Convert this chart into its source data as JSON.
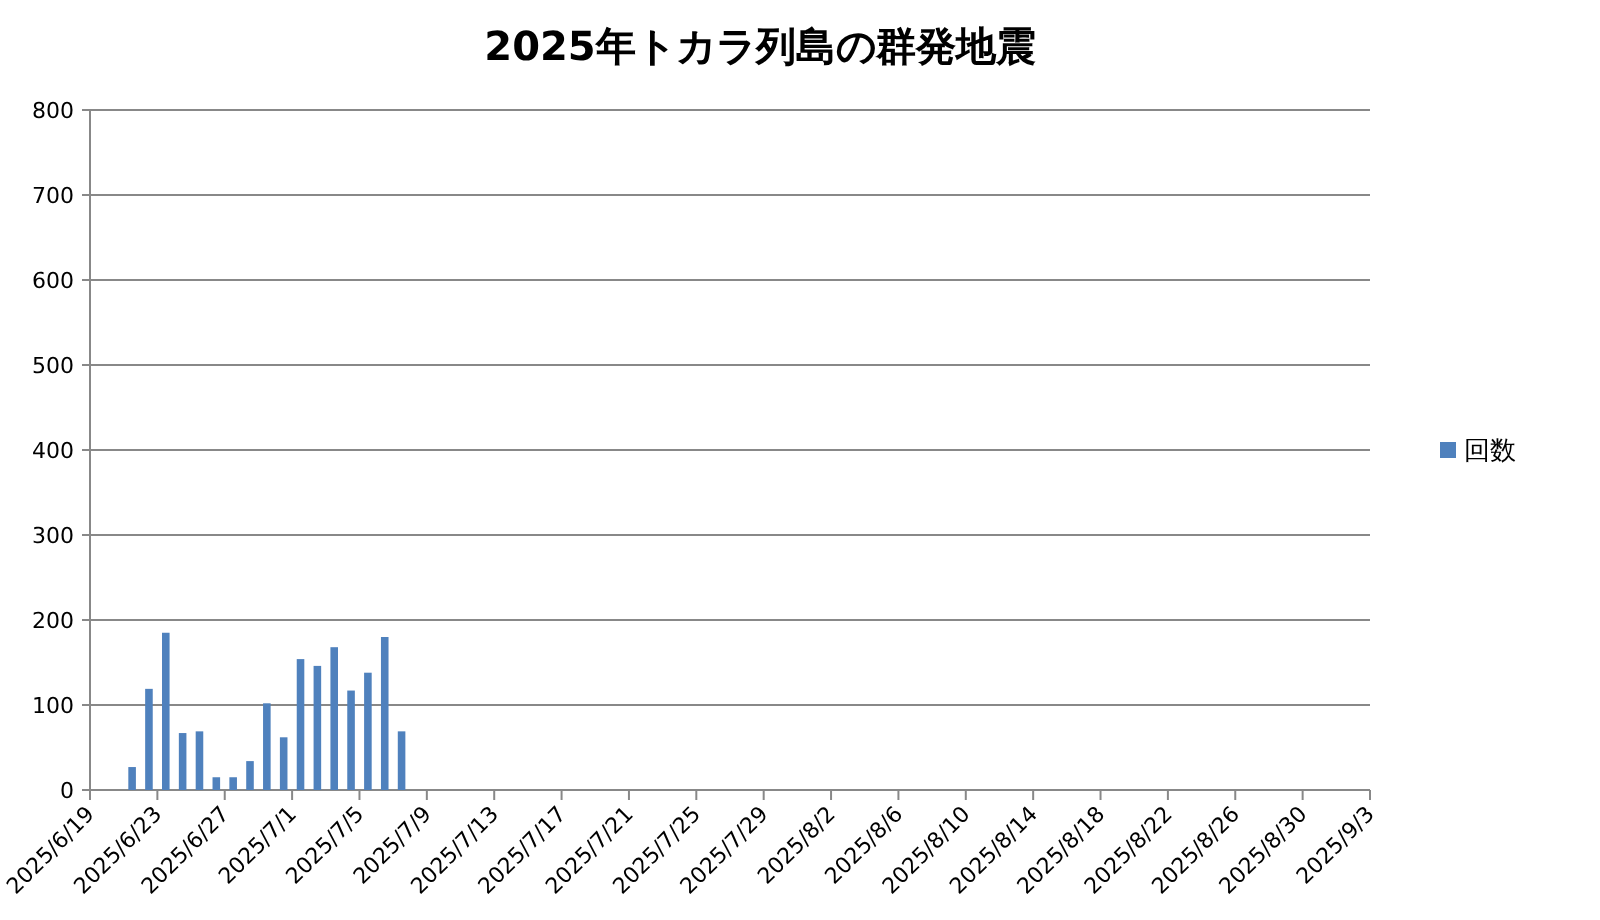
{
  "chart_data": {
    "type": "bar",
    "title": "2025年トカラ列島の群発地震",
    "x": [
      "2025-06-21T12:00",
      "2025-06-22T12:00",
      "2025-06-23T12:00",
      "2025-06-24T12:00",
      "2025-06-25T12:00",
      "2025-06-26T12:00",
      "2025-06-27T12:00",
      "2025-06-28T12:00",
      "2025-06-29T12:00",
      "2025-06-30T12:00",
      "2025-07-01T12:00",
      "2025-07-02T12:00",
      "2025-07-03T12:00",
      "2025-07-04T12:00",
      "2025-07-05T12:00",
      "2025-07-06T12:00",
      "2025-07-07T12:00"
    ],
    "series": [
      {
        "name": "回数",
        "color": "#4f81bd",
        "values": [
          27,
          119,
          185,
          67,
          69,
          15,
          15,
          34,
          102,
          62,
          154,
          146,
          168,
          117,
          138,
          180,
          69
        ]
      }
    ],
    "xlim": [
      "2025-06-19",
      "2025-09-03"
    ],
    "xticks": [
      {
        "value": "2025-06-19",
        "label": "2025/6/19"
      },
      {
        "value": "2025-06-23",
        "label": "2025/6/23"
      },
      {
        "value": "2025-06-27",
        "label": "2025/6/27"
      },
      {
        "value": "2025-07-01",
        "label": "2025/7/1"
      },
      {
        "value": "2025-07-05",
        "label": "2025/7/5"
      },
      {
        "value": "2025-07-09",
        "label": "2025/7/9"
      },
      {
        "value": "2025-07-13",
        "label": "2025/7/13"
      },
      {
        "value": "2025-07-17",
        "label": "2025/7/17"
      },
      {
        "value": "2025-07-21",
        "label": "2025/7/21"
      },
      {
        "value": "2025-07-25",
        "label": "2025/7/25"
      },
      {
        "value": "2025-07-29",
        "label": "2025/7/29"
      },
      {
        "value": "2025-08-02",
        "label": "2025/8/2"
      },
      {
        "value": "2025-08-06",
        "label": "2025/8/6"
      },
      {
        "value": "2025-08-10",
        "label": "2025/8/10"
      },
      {
        "value": "2025-08-14",
        "label": "2025/8/14"
      },
      {
        "value": "2025-08-18",
        "label": "2025/8/18"
      },
      {
        "value": "2025-08-22",
        "label": "2025/8/22"
      },
      {
        "value": "2025-08-26",
        "label": "2025/8/26"
      },
      {
        "value": "2025-08-30",
        "label": "2025/8/30"
      },
      {
        "value": "2025-09-03",
        "label": "2025/9/3"
      }
    ],
    "ylim": [
      0,
      800
    ],
    "yticks": [
      0,
      100,
      200,
      300,
      400,
      500,
      600,
      700,
      800
    ],
    "grid": "y",
    "legend": "right"
  }
}
